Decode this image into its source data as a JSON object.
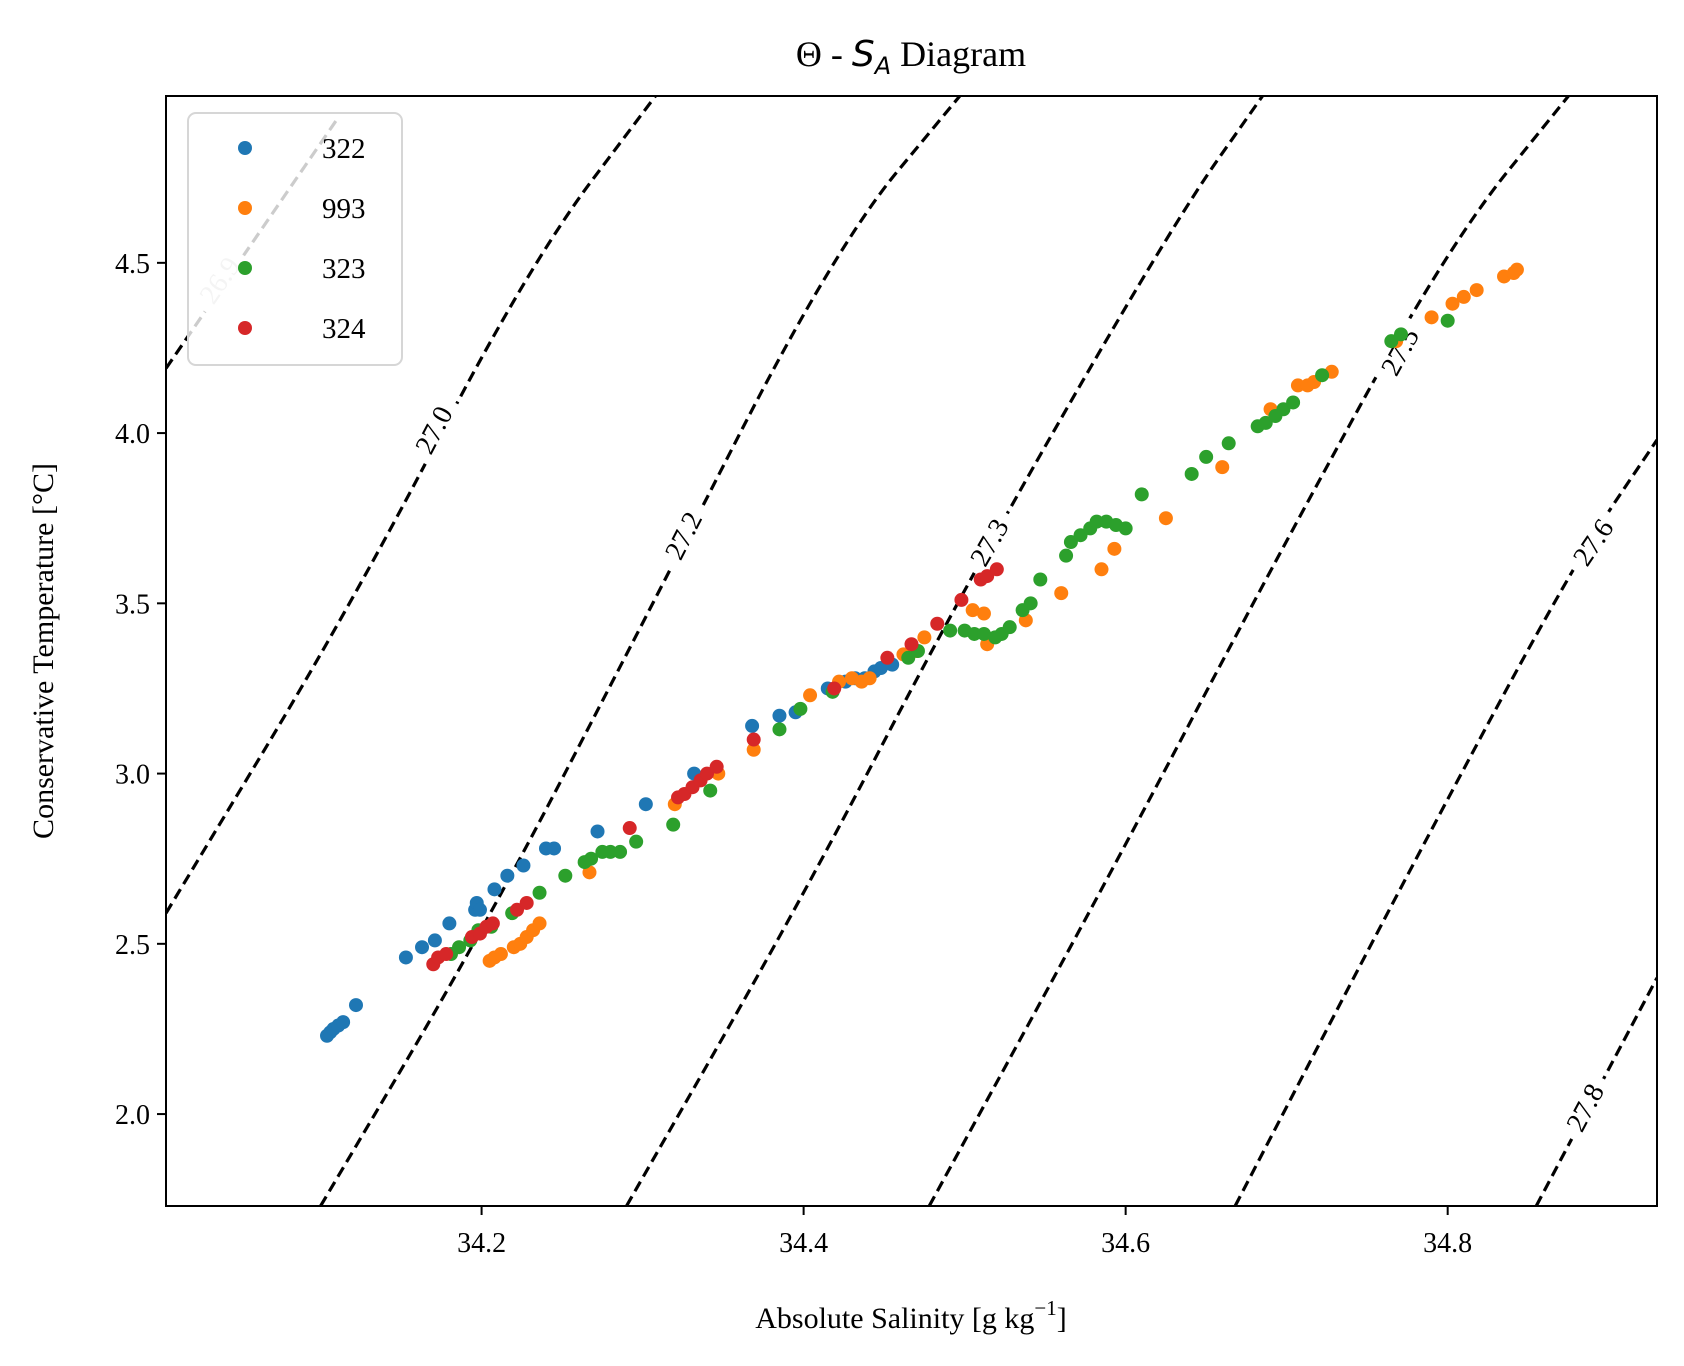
{
  "chart_data": {
    "type": "scatter",
    "title_prefix": "Θ - ",
    "title_symbol": "S",
    "title_subscript": "A",
    "title_suffix": " Diagram",
    "xlabel": "Absolute Salinity [g kg",
    "xlabel_superscript": "−1",
    "xlabel_suffix": "]",
    "ylabel": "Conservative Temperature [°C]",
    "xlim": [
      34.004,
      34.93
    ],
    "ylim": [
      1.73,
      4.99
    ],
    "xticks": [
      34.2,
      34.4,
      34.6,
      34.8
    ],
    "xtick_labels": [
      "34.2",
      "34.4",
      "34.6",
      "34.8"
    ],
    "yticks": [
      2.0,
      2.5,
      3.0,
      3.5,
      4.0,
      4.5
    ],
    "ytick_labels": [
      "2.0",
      "2.5",
      "3.0",
      "3.5",
      "4.0",
      "4.5"
    ],
    "grid": false,
    "legend_position": "top-left",
    "density_contours": [
      {
        "label": "26.9",
        "line_color": "#000000",
        "label_color": "#c8c8c8",
        "points": [
          [
            34.004,
            4.19
          ],
          [
            34.11,
            4.92
          ]
        ],
        "label_at": [
          34.037,
          4.45
        ]
      },
      {
        "label": "27.0",
        "line_color": "#000000",
        "label_color": "#000000",
        "points": [
          [
            34.004,
            2.59
          ],
          [
            34.12,
            3.5
          ],
          [
            34.23,
            4.5
          ],
          [
            34.308,
            4.99
          ]
        ],
        "label_at": [
          34.17,
          4.01
        ]
      },
      {
        "label": "27.2",
        "line_color": "#000000",
        "label_color": "#000000",
        "points": [
          [
            34.1,
            1.73
          ],
          [
            34.2,
            2.53
          ],
          [
            34.3,
            3.44
          ],
          [
            34.42,
            4.55
          ],
          [
            34.497,
            4.99
          ]
        ],
        "label_at": [
          34.325,
          3.7
        ]
      },
      {
        "label": "27.3",
        "line_color": "#000000",
        "label_color": "#000000",
        "points": [
          [
            34.29,
            1.73
          ],
          [
            34.4,
            2.64
          ],
          [
            34.5,
            3.55
          ],
          [
            34.63,
            4.62
          ],
          [
            34.685,
            4.99
          ]
        ],
        "label_at": [
          34.515,
          3.68
        ]
      },
      {
        "label": "27.5",
        "line_color": "#000000",
        "label_color": "#000000",
        "points": [
          [
            34.478,
            1.73
          ],
          [
            34.59,
            2.7
          ],
          [
            34.69,
            3.6
          ],
          [
            34.8,
            4.55
          ],
          [
            34.875,
            4.99
          ]
        ],
        "label_at": [
          34.77,
          4.24
        ]
      },
      {
        "label": "27.6",
        "line_color": "#000000",
        "label_color": "#000000",
        "points": [
          [
            34.668,
            1.73
          ],
          [
            34.78,
            2.75
          ],
          [
            34.88,
            3.63
          ],
          [
            34.93,
            3.98
          ]
        ],
        "label_at": [
          34.89,
          3.68
        ]
      },
      {
        "label": "27.8",
        "line_color": "#000000",
        "label_color": "#000000",
        "points": [
          [
            34.855,
            1.73
          ],
          [
            34.93,
            2.4
          ]
        ],
        "label_at": [
          34.885,
          2.02
        ]
      }
    ],
    "series": [
      {
        "name": "322",
        "color": "#1f77b4",
        "points": [
          [
            34.104,
            2.23
          ],
          [
            34.106,
            2.24
          ],
          [
            34.108,
            2.25
          ],
          [
            34.111,
            2.26
          ],
          [
            34.114,
            2.27
          ],
          [
            34.122,
            2.32
          ],
          [
            34.153,
            2.46
          ],
          [
            34.163,
            2.49
          ],
          [
            34.171,
            2.51
          ],
          [
            34.18,
            2.56
          ],
          [
            34.196,
            2.6
          ],
          [
            34.197,
            2.62
          ],
          [
            34.199,
            2.6
          ],
          [
            34.208,
            2.66
          ],
          [
            34.216,
            2.7
          ],
          [
            34.226,
            2.73
          ],
          [
            34.24,
            2.78
          ],
          [
            34.245,
            2.78
          ],
          [
            34.272,
            2.83
          ],
          [
            34.302,
            2.91
          ],
          [
            34.332,
            3.0
          ],
          [
            34.368,
            3.14
          ],
          [
            34.385,
            3.17
          ],
          [
            34.395,
            3.18
          ],
          [
            34.415,
            3.25
          ],
          [
            34.426,
            3.27
          ],
          [
            34.432,
            3.28
          ],
          [
            34.438,
            3.28
          ],
          [
            34.444,
            3.3
          ],
          [
            34.448,
            3.31
          ],
          [
            34.455,
            3.32
          ]
        ]
      },
      {
        "name": "993",
        "color": "#ff7f0e",
        "points": [
          [
            34.205,
            2.45
          ],
          [
            34.208,
            2.46
          ],
          [
            34.212,
            2.47
          ],
          [
            34.22,
            2.49
          ],
          [
            34.224,
            2.5
          ],
          [
            34.228,
            2.52
          ],
          [
            34.232,
            2.54
          ],
          [
            34.236,
            2.56
          ],
          [
            34.267,
            2.71
          ],
          [
            34.32,
            2.91
          ],
          [
            34.347,
            3.0
          ],
          [
            34.369,
            3.07
          ],
          [
            34.404,
            3.23
          ],
          [
            34.422,
            3.27
          ],
          [
            34.43,
            3.28
          ],
          [
            34.436,
            3.27
          ],
          [
            34.441,
            3.28
          ],
          [
            34.462,
            3.35
          ],
          [
            34.47,
            3.36
          ],
          [
            34.475,
            3.4
          ],
          [
            34.505,
            3.48
          ],
          [
            34.512,
            3.47
          ],
          [
            34.514,
            3.38
          ],
          [
            34.538,
            3.45
          ],
          [
            34.56,
            3.53
          ],
          [
            34.585,
            3.6
          ],
          [
            34.593,
            3.66
          ],
          [
            34.625,
            3.75
          ],
          [
            34.66,
            3.9
          ],
          [
            34.69,
            4.07
          ],
          [
            34.707,
            4.14
          ],
          [
            34.713,
            4.14
          ],
          [
            34.717,
            4.15
          ],
          [
            34.728,
            4.18
          ],
          [
            34.768,
            4.27
          ],
          [
            34.79,
            4.34
          ],
          [
            34.803,
            4.38
          ],
          [
            34.81,
            4.4
          ],
          [
            34.818,
            4.42
          ],
          [
            34.835,
            4.46
          ],
          [
            34.841,
            4.47
          ],
          [
            34.843,
            4.48
          ]
        ]
      },
      {
        "name": "323",
        "color": "#2ca02c",
        "points": [
          [
            34.181,
            2.47
          ],
          [
            34.186,
            2.49
          ],
          [
            34.193,
            2.51
          ],
          [
            34.198,
            2.54
          ],
          [
            34.206,
            2.55
          ],
          [
            34.219,
            2.59
          ],
          [
            34.236,
            2.65
          ],
          [
            34.252,
            2.7
          ],
          [
            34.264,
            2.74
          ],
          [
            34.268,
            2.75
          ],
          [
            34.275,
            2.77
          ],
          [
            34.28,
            2.77
          ],
          [
            34.286,
            2.77
          ],
          [
            34.296,
            2.8
          ],
          [
            34.319,
            2.85
          ],
          [
            34.342,
            2.95
          ],
          [
            34.385,
            3.13
          ],
          [
            34.398,
            3.19
          ],
          [
            34.418,
            3.24
          ],
          [
            34.465,
            3.34
          ],
          [
            34.471,
            3.36
          ],
          [
            34.491,
            3.42
          ],
          [
            34.5,
            3.42
          ],
          [
            34.506,
            3.41
          ],
          [
            34.512,
            3.41
          ],
          [
            34.519,
            3.4
          ],
          [
            34.523,
            3.41
          ],
          [
            34.528,
            3.43
          ],
          [
            34.536,
            3.48
          ],
          [
            34.541,
            3.5
          ],
          [
            34.547,
            3.57
          ],
          [
            34.563,
            3.64
          ],
          [
            34.566,
            3.68
          ],
          [
            34.572,
            3.7
          ],
          [
            34.578,
            3.72
          ],
          [
            34.582,
            3.74
          ],
          [
            34.588,
            3.74
          ],
          [
            34.594,
            3.73
          ],
          [
            34.6,
            3.72
          ],
          [
            34.61,
            3.82
          ],
          [
            34.641,
            3.88
          ],
          [
            34.65,
            3.93
          ],
          [
            34.664,
            3.97
          ],
          [
            34.682,
            4.02
          ],
          [
            34.687,
            4.03
          ],
          [
            34.693,
            4.05
          ],
          [
            34.698,
            4.07
          ],
          [
            34.704,
            4.09
          ],
          [
            34.722,
            4.17
          ],
          [
            34.765,
            4.27
          ],
          [
            34.771,
            4.29
          ],
          [
            34.8,
            4.33
          ]
        ]
      },
      {
        "name": "324",
        "color": "#d62728",
        "points": [
          [
            34.17,
            2.44
          ],
          [
            34.173,
            2.46
          ],
          [
            34.178,
            2.47
          ],
          [
            34.194,
            2.52
          ],
          [
            34.199,
            2.53
          ],
          [
            34.203,
            2.55
          ],
          [
            34.207,
            2.56
          ],
          [
            34.222,
            2.6
          ],
          [
            34.228,
            2.62
          ],
          [
            34.292,
            2.84
          ],
          [
            34.322,
            2.93
          ],
          [
            34.326,
            2.94
          ],
          [
            34.331,
            2.96
          ],
          [
            34.336,
            2.98
          ],
          [
            34.34,
            3.0
          ],
          [
            34.346,
            3.02
          ],
          [
            34.369,
            3.1
          ],
          [
            34.419,
            3.25
          ],
          [
            34.452,
            3.34
          ],
          [
            34.467,
            3.38
          ],
          [
            34.483,
            3.44
          ],
          [
            34.498,
            3.51
          ],
          [
            34.51,
            3.57
          ],
          [
            34.514,
            3.58
          ],
          [
            34.52,
            3.6
          ]
        ]
      }
    ]
  }
}
